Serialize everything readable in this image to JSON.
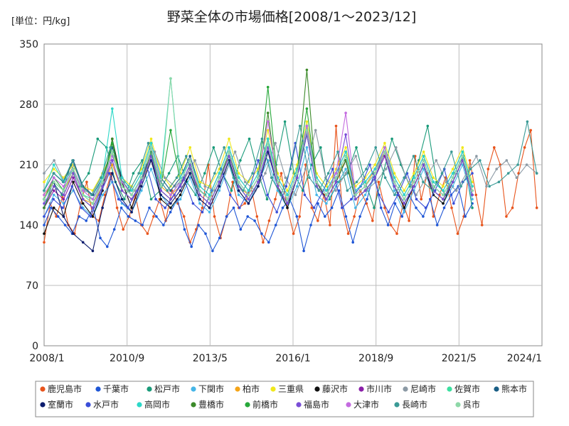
{
  "chart_data": {
    "type": "line",
    "title": "野菜全体の市場価格[2008/1～2023/12]",
    "unit_label": "[単位：円/kg]",
    "ylim": [
      0,
      350
    ],
    "y_ticks": [
      "0",
      "70",
      "140",
      "210",
      "280",
      "350"
    ],
    "x_tick_labels": [
      "2008/1",
      "2010/9",
      "2013/5",
      "2016/1",
      "2018/9",
      "2021/5",
      "2024/1"
    ],
    "grid": true,
    "legend_position": "bottom",
    "series": [
      {
        "name": "鹿児島市",
        "color": "#e8541c",
        "values": [
          120,
          165,
          150,
          172,
          140,
          130,
          165,
          190,
          150,
          145,
          175,
          200,
          160,
          135,
          150,
          175,
          140,
          130,
          150,
          170,
          145,
          180,
          165,
          150,
          120,
          135,
          160,
          210,
          150,
          125,
          150,
          190,
          160,
          165,
          185,
          150,
          120,
          145,
          170,
          200,
          160,
          130,
          150,
          210,
          160,
          145,
          175,
          140,
          255,
          160,
          130,
          150,
          180,
          165,
          145,
          190,
          160,
          140,
          130,
          165,
          145,
          220,
          170,
          200,
          150,
          175,
          195,
          160,
          130,
          150,
          215,
          175,
          140,
          205,
          230,
          210,
          150,
          160,
          200,
          230,
          250,
          160
        ]
      },
      {
        "name": "千葉市",
        "color": "#1f56d6",
        "values": [
          140,
          160,
          150,
          140,
          130,
          150,
          145,
          160,
          125,
          115,
          135,
          160,
          150,
          145,
          140,
          160,
          150,
          140,
          155,
          170,
          135,
          115,
          140,
          130,
          110,
          125,
          150,
          160,
          135,
          150,
          145,
          130,
          120,
          140,
          160,
          170,
          150,
          110,
          140,
          165,
          150,
          160,
          180,
          150,
          120,
          150,
          170,
          200,
          160,
          140,
          165,
          150,
          175,
          160,
          150,
          170,
          140,
          160,
          175,
          185,
          150,
          165
        ]
      },
      {
        "name": "松戸市",
        "color": "#1a9b7a",
        "values": [
          160,
          190,
          175,
          210,
          185,
          200,
          240,
          230,
          190,
          170,
          200,
          215,
          170,
          180,
          200,
          220,
          190,
          175,
          200,
          230,
          200,
          180,
          215,
          240,
          200,
          170,
          210,
          260,
          200,
          180,
          210,
          230,
          170,
          190,
          200,
          230,
          190,
          160,
          200,
          240,
          210,
          185,
          215,
          255,
          190,
          175,
          200,
          220,
          160
        ]
      },
      {
        "name": "下関市",
        "color": "#46b6e8",
        "values": [
          150,
          175,
          165,
          180,
          160,
          150,
          175,
          190,
          165,
          155,
          180,
          205,
          175,
          160,
          170,
          195,
          165,
          155,
          180,
          210,
          175,
          165,
          190,
          215,
          180,
          160,
          185,
          230,
          175,
          165,
          185,
          205,
          160,
          175,
          195,
          220,
          180,
          155,
          180,
          205,
          175,
          165,
          185,
          210,
          170
        ]
      },
      {
        "name": "柏市",
        "color": "#f5a418",
        "values": [
          175,
          190,
          180,
          200,
          170,
          165,
          185,
          210,
          180,
          170,
          190,
          215,
          185,
          175,
          185,
          205,
          180,
          170,
          195,
          220,
          185,
          175,
          195,
          240,
          190,
          170,
          200,
          250,
          190,
          175,
          195,
          215,
          175,
          185,
          205,
          225,
          190,
          170,
          190,
          215,
          185,
          175,
          195,
          220,
          180
        ]
      },
      {
        "name": "三重県",
        "color": "#f0e81c",
        "values": [
          190,
          205,
          195,
          210,
          185,
          180,
          200,
          225,
          195,
          185,
          205,
          240,
          200,
          185,
          200,
          230,
          190,
          185,
          205,
          240,
          200,
          190,
          205,
          250,
          200,
          180,
          210,
          260,
          200,
          185,
          205,
          230,
          185,
          195,
          210,
          235,
          200,
          180,
          200,
          225,
          195,
          185,
          205,
          230,
          190
        ]
      },
      {
        "name": "藤沢市",
        "color": "#111111",
        "values": [
          130,
          160,
          150,
          190,
          165,
          150,
          180,
          240,
          190,
          160,
          190,
          220,
          170,
          160,
          175,
          200,
          170,
          160,
          185,
          215,
          180,
          165,
          185,
          225,
          185,
          160,
          195,
          250,
          190,
          170,
          190,
          215,
          170,
          180,
          195,
          225,
          185,
          160,
          185,
          210,
          175,
          165,
          190,
          215,
          175
        ]
      },
      {
        "name": "市川市",
        "color": "#8a1fa8",
        "values": [
          160,
          180,
          170,
          195,
          170,
          160,
          185,
          215,
          180,
          170,
          190,
          220,
          180,
          170,
          185,
          205,
          175,
          165,
          190,
          220,
          185,
          170,
          190,
          230,
          185,
          165,
          195,
          245,
          185,
          170,
          190,
          215,
          170,
          180,
          195,
          220,
          185,
          165,
          185,
          210,
          180,
          170,
          190,
          215,
          175
        ]
      },
      {
        "name": "尼崎市",
        "color": "#8c9aa5",
        "values": [
          200,
          215,
          190,
          210,
          180,
          175,
          195,
          220,
          190,
          180,
          200,
          225,
          195,
          185,
          195,
          215,
          185,
          180,
          200,
          225,
          190,
          180,
          200,
          235,
          195,
          175,
          205,
          250,
          195,
          180,
          200,
          220,
          180,
          190,
          205,
          230,
          195,
          175,
          195,
          215,
          190,
          180,
          200,
          220,
          185,
          205,
          215,
          195,
          210,
          200
        ]
      },
      {
        "name": "佐賀市",
        "color": "#3be0a0",
        "values": [
          170,
          190,
          180,
          205,
          175,
          170,
          190,
          225,
          185,
          175,
          195,
          230,
          190,
          175,
          190,
          215,
          180,
          170,
          195,
          225,
          190,
          175,
          195,
          235,
          190,
          170,
          200,
          250,
          190,
          175,
          195,
          220,
          175,
          185,
          200,
          225,
          190,
          170,
          190,
          215,
          185,
          175,
          195,
          220,
          180
        ]
      },
      {
        "name": "熊本市",
        "color": "#1a5e85",
        "values": [
          180,
          200,
          190,
          215,
          185,
          175,
          195,
          230,
          195,
          180,
          200,
          235,
          195,
          180,
          195,
          220,
          185,
          175,
          200,
          230,
          195,
          180,
          200,
          240,
          195,
          175,
          205,
          255,
          195,
          180,
          200,
          225,
          180,
          190,
          205,
          230,
          195,
          175,
          195,
          220,
          190,
          180,
          200,
          225,
          185
        ]
      },
      {
        "name": "室蘭市",
        "color": "#0c1c6e",
        "values": [
          170,
          190,
          150,
          130,
          120,
          110,
          160,
          200,
          170,
          155,
          185,
          215,
          175,
          165,
          180,
          200,
          170,
          160,
          185,
          215,
          180,
          165,
          185,
          225,
          185,
          165,
          195,
          245,
          185,
          170,
          190,
          215,
          170,
          180,
          195,
          225,
          185,
          165,
          185,
          210,
          180,
          170,
          190,
          215,
          175
        ]
      },
      {
        "name": "水戸市",
        "color": "#3a4ed8",
        "values": [
          150,
          170,
          160,
          185,
          160,
          150,
          175,
          200,
          170,
          160,
          180,
          210,
          170,
          160,
          175,
          195,
          165,
          155,
          180,
          205,
          175,
          160,
          180,
          215,
          175,
          155,
          185,
          235,
          175,
          160,
          180,
          205,
          160,
          170,
          185,
          210,
          175,
          155,
          175,
          200,
          170,
          160,
          180,
          205,
          165,
          190,
          200
        ]
      },
      {
        "name": "高岡市",
        "color": "#2cd8c8",
        "values": [
          180,
          210,
          190,
          205,
          180,
          170,
          195,
          275,
          195,
          180,
          200,
          235,
          195,
          310,
          195,
          215,
          185,
          175,
          200,
          230,
          195,
          180,
          200,
          240,
          195,
          175,
          205,
          255,
          195,
          180,
          200,
          225,
          180,
          190,
          205,
          230,
          195,
          175,
          195,
          220,
          190,
          180,
          200,
          225,
          185
        ]
      },
      {
        "name": "豊橋市",
        "color": "#3c8a2a",
        "values": [
          160,
          185,
          175,
          200,
          170,
          160,
          185,
          240,
          180,
          170,
          190,
          225,
          180,
          170,
          185,
          210,
          175,
          165,
          190,
          225,
          185,
          170,
          190,
          270,
          185,
          165,
          195,
          320,
          185,
          170,
          190,
          215,
          170,
          180,
          195,
          225,
          185,
          165,
          185,
          210,
          180,
          170,
          190,
          215,
          175
        ]
      },
      {
        "name": "前橋市",
        "color": "#27a83a",
        "values": [
          170,
          195,
          180,
          205,
          175,
          165,
          190,
          235,
          185,
          175,
          195,
          230,
          185,
          250,
          190,
          215,
          180,
          170,
          195,
          225,
          190,
          175,
          195,
          300,
          190,
          170,
          200,
          275,
          190,
          175,
          195,
          220,
          175,
          185,
          200,
          230,
          190,
          170,
          190,
          215,
          185,
          175,
          195,
          220,
          180
        ]
      },
      {
        "name": "福島市",
        "color": "#7a4ed6",
        "values": [
          165,
          185,
          175,
          200,
          170,
          160,
          185,
          215,
          180,
          170,
          190,
          220,
          180,
          170,
          185,
          210,
          175,
          165,
          190,
          220,
          185,
          170,
          190,
          230,
          185,
          165,
          195,
          245,
          185,
          170,
          190,
          245,
          170,
          180,
          195,
          225,
          185,
          165,
          185,
          210,
          180,
          170,
          190,
          215,
          175
        ]
      },
      {
        "name": "大津市",
        "color": "#c46be0",
        "values": [
          175,
          195,
          185,
          205,
          180,
          170,
          190,
          220,
          190,
          175,
          195,
          230,
          190,
          175,
          190,
          215,
          180,
          170,
          195,
          225,
          190,
          175,
          195,
          260,
          190,
          170,
          200,
          255,
          190,
          175,
          200,
          270,
          175,
          185,
          200,
          230,
          190,
          170,
          190,
          215,
          185,
          175,
          195,
          220,
          180
        ]
      },
      {
        "name": "長崎市",
        "color": "#3a9a96",
        "values": [
          180,
          200,
          190,
          215,
          185,
          175,
          195,
          230,
          195,
          180,
          200,
          235,
          195,
          180,
          195,
          220,
          185,
          175,
          200,
          230,
          195,
          180,
          200,
          240,
          195,
          175,
          205,
          255,
          195,
          180,
          200,
          225,
          180,
          190,
          205,
          230,
          195,
          175,
          195,
          220,
          190,
          180,
          200,
          225,
          185,
          205,
          215,
          185,
          190,
          200,
          210,
          260,
          200
        ]
      },
      {
        "name": "呉市",
        "color": "#8ed8a8",
        "values": [
          170,
          190,
          180,
          205,
          175,
          165,
          190,
          225,
          185,
          175,
          195,
          230,
          185,
          310,
          190,
          215,
          180,
          170,
          195,
          225,
          190,
          175,
          195,
          235,
          190,
          170,
          200,
          250,
          190,
          175,
          195,
          220,
          175,
          185,
          200,
          225,
          190,
          170,
          190,
          215,
          185,
          175,
          195,
          220,
          180
        ]
      }
    ]
  }
}
